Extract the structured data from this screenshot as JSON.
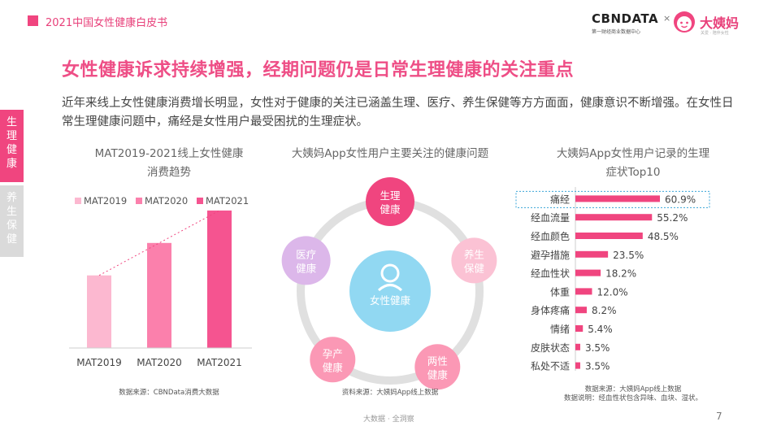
{
  "header": {
    "report_title": "2021中国女性健康白皮书"
  },
  "brand": {
    "cbndata": "CBNDATA",
    "cbndata_sub": "第一财经商业数据中心",
    "times": "×",
    "dayima": "大姨妈",
    "slogan": "关爱 · 陪伴女性"
  },
  "title": "女性健康诉求持续增强，经期问题仍是日常生理健康的关注重点",
  "description": "近年来线上女性健康消费增长明显，女性对于健康的关注已涵盖生理、医疗、养生保健等方方面面，健康意识不断增强。在女性日常生理健康问题中，痛经是女性用户最受困扰的生理症状。",
  "side_tabs": [
    {
      "label": "生理健康",
      "active": true
    },
    {
      "label": "养生保健",
      "active": false
    }
  ],
  "chart_data": [
    {
      "type": "bar",
      "title_line1": "MAT2019-2021线上女性健康",
      "title_line2": "消费趋势",
      "categories": [
        "MAT2019",
        "MAT2020",
        "MAT2021"
      ],
      "legend": [
        "MAT2019",
        "MAT2020",
        "MAT2021"
      ],
      "values": [
        0.47,
        0.68,
        0.89
      ],
      "value_scale": "relative index (no axis printed)",
      "colors": [
        "#fcb8d0",
        "#fb80ac",
        "#f55490"
      ],
      "trend_line": true,
      "legend_position": "top",
      "source": "数据来源：CBNData消费大数据"
    },
    {
      "type": "diagram",
      "title": "大姨妈App女性用户主要关注的健康问题",
      "center": {
        "label": "女性健康",
        "color": "#91d8f2"
      },
      "nodes": [
        {
          "label1": "生理",
          "label2": "健康",
          "color": "#f0457f"
        },
        {
          "label1": "养生",
          "label2": "保健",
          "color": "#fbc2d4"
        },
        {
          "label1": "两性",
          "label2": "健康",
          "color": "#fb98b5"
        },
        {
          "label1": "孕产",
          "label2": "健康",
          "color": "#fb98b5"
        },
        {
          "label1": "医疗",
          "label2": "健康",
          "color": "#dcb7ea"
        }
      ],
      "source": "资料来源：大姨妈App线上数据"
    },
    {
      "type": "bar",
      "orientation": "horizontal",
      "title_line1": "大姨妈App女性用户记录的生理",
      "title_line2": "症状Top10",
      "categories": [
        "痛经",
        "经血流量",
        "经血颜色",
        "避孕措施",
        "经血性状",
        "体重",
        "身体疼痛",
        "情绪",
        "皮肤状态",
        "私处不适"
      ],
      "values": [
        60.9,
        55.2,
        48.5,
        23.5,
        18.2,
        12.0,
        8.2,
        5.4,
        3.5,
        3.5
      ],
      "value_labels": [
        "60.9%",
        "55.2%",
        "48.5%",
        "23.5%",
        "18.2%",
        "12.0%",
        "8.2%",
        "5.4%",
        "3.5%",
        "3.5%"
      ],
      "unit": "%",
      "highlight_index": 0,
      "color": "#f0457f",
      "source_line1": "数据来源：大姨妈App线上数据",
      "source_line2": "数据说明：经血性状包含异味、血块、湿状。"
    }
  ],
  "footer": {
    "center": "大数据 · 全洞察",
    "page": "7"
  }
}
